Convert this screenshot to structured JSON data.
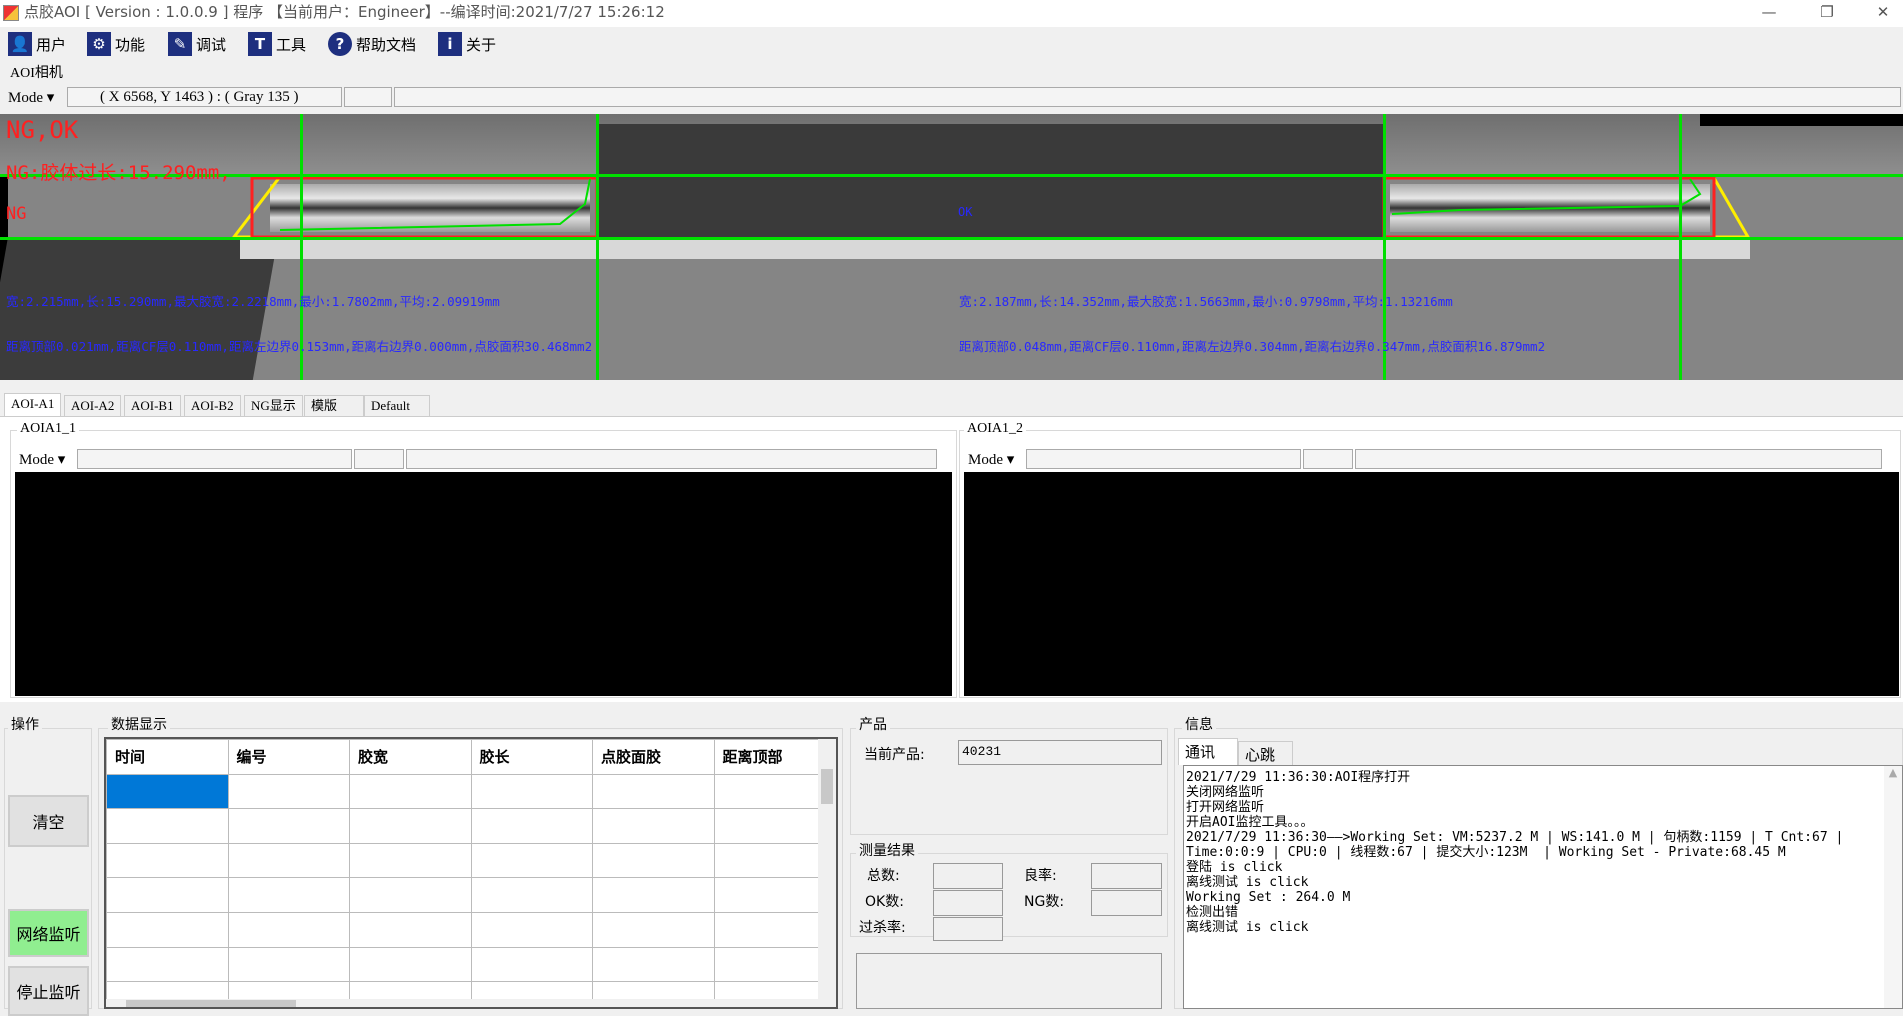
{
  "window": {
    "title": "点胶AOI [ Version : 1.0.0.9 ]  程序 【当前用户：Engineer】--编译时间:2021/7/27 15:26:12",
    "minimize": "—",
    "restore": "❐",
    "close": "✕"
  },
  "toolbar": [
    {
      "label": "用户",
      "icon": "user-icon",
      "glyph": "👤"
    },
    {
      "label": "功能",
      "icon": "gear-icon",
      "glyph": "⚙"
    },
    {
      "label": "调试",
      "icon": "debug-icon",
      "glyph": "✎"
    },
    {
      "label": "工具",
      "icon": "hammer-icon",
      "glyph": "T"
    },
    {
      "label": "帮助文档",
      "icon": "help-icon",
      "glyph": "?"
    },
    {
      "label": "关于",
      "icon": "info-icon",
      "glyph": "i"
    }
  ],
  "camera": {
    "label": "AOI相机",
    "mode": "Mode ▾",
    "coords": "( X 6568, Y 1463 ) : ( Gray 135 )"
  },
  "overlay": {
    "result": "NG,OK",
    "ng_reason": "NG:胶体过长:15.290mm,",
    "left_status": "NG",
    "right_status": "OK",
    "left_line1": "宽:2.215mm,长:15.290mm,最大胶宽:2.2218mm,最小:1.7802mm,平均:2.09919mm",
    "left_line2": "距离顶部0.021mm,距离CF层0.110mm,距离左边界0.153mm,距离右边界0.000mm,点胶面积30.468mm2",
    "right_line1": "宽:2.187mm,长:14.352mm,最大胶宽:1.5663mm,最小:0.9798mm,平均:1.13216mm",
    "right_line2": "距离顶部0.048mm,距离CF层0.110mm,距离左边界0.304mm,距离右边界0.347mm,点胶面积16.879mm2"
  },
  "tabs": [
    "AOI-A1",
    "AOI-A2",
    "AOI-B1",
    "AOI-B2",
    "NG显示",
    "模版",
    "Default"
  ],
  "panels": [
    {
      "title": "AOIA1_1",
      "mode": "Mode ▾"
    },
    {
      "title": "AOIA1_2",
      "mode": "Mode ▾"
    }
  ],
  "operations": {
    "title": "操作",
    "clear": "清空",
    "listen": "网络监听",
    "stop": "停止监听",
    "listen_color": "#90ee90"
  },
  "data_display": {
    "title": "数据显示",
    "columns": [
      "时间",
      "编号",
      "胶宽",
      "胶长",
      "点胶面胶",
      "距离顶部"
    ],
    "selected_color": "#0078d7"
  },
  "product": {
    "title": "产品",
    "current_label": "当前产品:",
    "current_value": "40231"
  },
  "measure": {
    "title": "测量结果",
    "total": "总数:",
    "yield": "良率:",
    "ok": "OK数:",
    "ng": "NG数:",
    "overkill": "过杀率:"
  },
  "info": {
    "title": "信息",
    "tabs": [
      "通讯",
      "心跳包"
    ],
    "log": [
      "2021/7/29 11:36:30:AOI程序打开",
      "关闭网络监听",
      "打开网络监听",
      "开启AOI监控工具。。。",
      "2021/7/29 11:36:30——>Working Set: VM:5237.2 M | WS:141.0 M | 句柄数:1159 | T Cnt:67 |",
      "Time:0:0:9 | CPU:0 | 线程数:67 | 提交大小:123M  | Working Set - Private:68.45 M",
      "登陆 is click",
      "离线测试 is click",
      "Working Set : 264.0 M",
      "检测出错",
      "离线测试 is click"
    ]
  }
}
